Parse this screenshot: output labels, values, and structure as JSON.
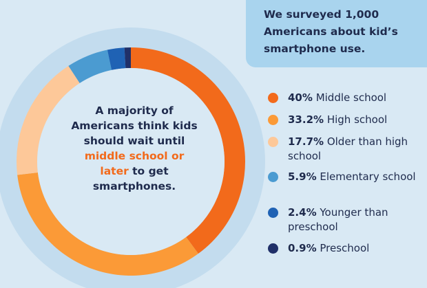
{
  "survey_note": "We surveyed 1,000 Americans about kid’s smartphone use.",
  "center_text": {
    "part1": "A majority of Americans think kids should wait until ",
    "highlight": "middle school or later",
    "part2": " to get smartphones."
  },
  "colors": {
    "background": "#d9e9f4",
    "highlight": "#f26a1b",
    "survey_box": "#a9d4ee"
  },
  "chart_data": {
    "type": "pie",
    "variant": "donut",
    "unit": "%",
    "start": "top, clockwise",
    "series": [
      {
        "label": "Middle school",
        "display_value": "40%",
        "value": 40,
        "color": "#f26a1b"
      },
      {
        "label": "High school",
        "display_value": "33.2%",
        "value": 33.2,
        "color": "#fb9a37"
      },
      {
        "label": "Older than high school",
        "display_value": "17.7%",
        "value": 17.7,
        "color": "#fdc899"
      },
      {
        "label": "Elementary school",
        "display_value": "5.9%",
        "value": 5.9,
        "color": "#4b9bd1"
      },
      {
        "label": "Younger than preschool",
        "display_value": "2.4%",
        "value": 2.4,
        "color": "#1f62b4"
      },
      {
        "label": "Preschool",
        "display_value": "0.9%",
        "value": 0.9,
        "color": "#203069"
      }
    ]
  }
}
